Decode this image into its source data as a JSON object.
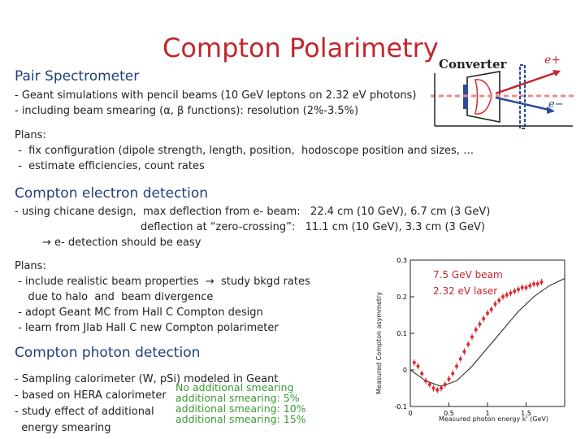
{
  "title": "Compton Polarimetry",
  "pair": {
    "heading": "Pair Spectrometer",
    "lines": [
      "- Geant simulations with pencil beams   (10 GeV leptons on 2.32 eV photons)",
      "- including beam smearing (α, β functions): resolution (2%-3.5%)"
    ],
    "plans_label": "Plans:",
    "plans": [
      " -  fix configuration (dipole strength, length, position,  hodoscope position and sizes, …",
      " -  estimate efficiencies, count rates"
    ]
  },
  "converter_diagram": {
    "label": "Converter",
    "positron_label": "e+",
    "electron_label": "e−"
  },
  "electron": {
    "heading": "Compton electron detection",
    "line1": "- using chicane design,  max deflection from e- beam:   22.4 cm (10 GeV), 6.7 cm (3 GeV)",
    "line2": "deflection at “zero-crossing”:   11.1 cm (10 GeV), 3.3 cm (3 GeV)",
    "line3": "→ e- detection should be easy",
    "plans_label": "Plans:",
    "plans": [
      " - include realistic beam properties  →  study bkgd rates",
      "    due to halo  and  beam divergence",
      " - adopt Geant MC from Hall C Compton design",
      " - learn from Jlab Hall C new Compton polarimeter"
    ]
  },
  "chart_data": {
    "type": "scatter",
    "title": "",
    "annotation": [
      "7.5 GeV beam",
      "2.32 eV laser"
    ],
    "xlabel": "Measured photon energy k' (GeV)",
    "ylabel": "Measured Compton asymmetry",
    "xlim": [
      0,
      2.0
    ],
    "ylim": [
      -0.1,
      0.3
    ],
    "xticks": [
      "0",
      "0.5",
      "1",
      "1.5"
    ],
    "yticks": [
      "-0.1",
      "0",
      "0.1",
      "0.2",
      "0.3"
    ],
    "series": [
      {
        "x": [
          0.05,
          0.1,
          0.15,
          0.2,
          0.25,
          0.3,
          0.35,
          0.4,
          0.45,
          0.5,
          0.55,
          0.6,
          0.65,
          0.7,
          0.75,
          0.8,
          0.85,
          0.9,
          0.95,
          1.0,
          1.05,
          1.1,
          1.15,
          1.2,
          1.25,
          1.3,
          1.35,
          1.4,
          1.45,
          1.5,
          1.55,
          1.6,
          1.65,
          1.7
        ],
        "y": [
          0.02,
          0.01,
          -0.01,
          -0.03,
          -0.04,
          -0.05,
          -0.055,
          -0.05,
          -0.04,
          -0.025,
          -0.01,
          0.01,
          0.03,
          0.05,
          0.07,
          0.09,
          0.11,
          0.125,
          0.14,
          0.155,
          0.165,
          0.18,
          0.19,
          0.2,
          0.205,
          0.21,
          0.215,
          0.22,
          0.225,
          0.225,
          0.23,
          0.235,
          0.235,
          0.24
        ]
      },
      {
        "x": [
          0.0,
          0.2,
          0.4,
          0.6,
          0.8,
          1.0,
          1.2,
          1.4,
          1.6,
          1.8,
          2.0
        ],
        "y": [
          0.0,
          -0.03,
          -0.045,
          -0.03,
          0.01,
          0.06,
          0.11,
          0.16,
          0.2,
          0.23,
          0.25
        ]
      }
    ]
  },
  "photon": {
    "heading": "Compton photon detection",
    "lines": [
      "- Sampling calorimeter (W, pSi) modeled in Geant",
      "- based on HERA calorimeter",
      "- study effect of additional",
      "  energy smearing"
    ],
    "legend": [
      "No additional smearing",
      "additional smearing: 5%",
      "additional smearing: 10%",
      "additional smearing: 15%"
    ]
  },
  "colors": {
    "title": "#c0282d",
    "heading": "#1f3f7a",
    "points": "#d9282f",
    "legend": "#3a9a33"
  }
}
